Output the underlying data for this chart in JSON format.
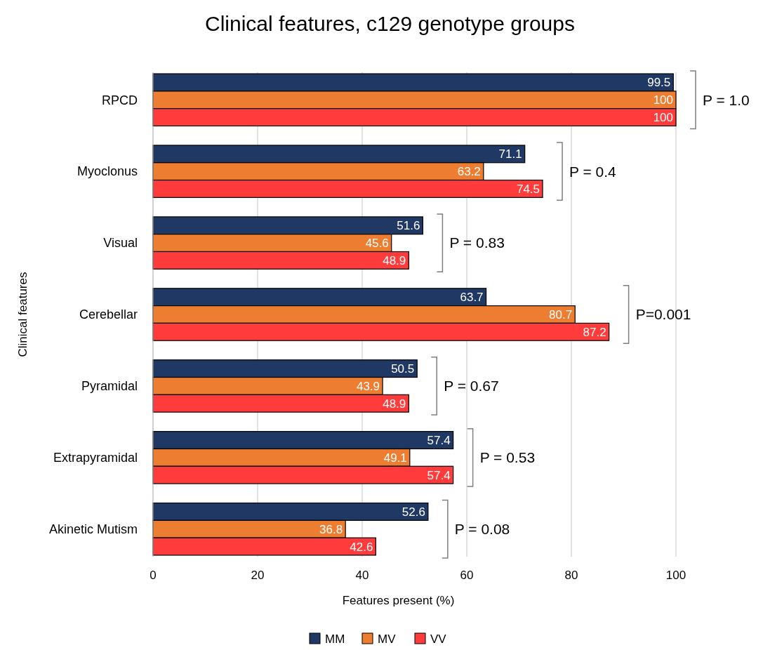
{
  "chart_data": {
    "type": "bar",
    "orientation": "horizontal",
    "title": "Clinical features, c129 genotype groups",
    "xlabel": "Features present (%)",
    "ylabel": "Clinical features",
    "categories": [
      "RPCD",
      "Myoclonus",
      "Visual",
      "Cerebellar",
      "Pyramidal",
      "Extrapyramidal",
      "Akinetic Mutism"
    ],
    "series": [
      {
        "name": "MM",
        "color": "#203864",
        "values": [
          99.5,
          71.1,
          51.6,
          63.7,
          50.5,
          57.4,
          52.6
        ]
      },
      {
        "name": "MV",
        "color": "#ed7d31",
        "values": [
          100,
          63.2,
          45.6,
          80.7,
          43.9,
          49.1,
          36.8
        ]
      },
      {
        "name": "VV",
        "color": "#ff3b3b",
        "values": [
          100,
          74.5,
          48.9,
          87.2,
          48.9,
          57.4,
          42.6
        ]
      }
    ],
    "xlim": [
      0,
      100
    ],
    "xticks": [
      0,
      20,
      40,
      60,
      80,
      100
    ],
    "grid": "x",
    "legend": "bottom",
    "data_labels": true,
    "annotations": [
      "P = 1.0",
      "P = 0.4",
      "P = 0.83",
      "P=0.001",
      "P = 0.67",
      "P = 0.53",
      "P = 0.08"
    ]
  }
}
